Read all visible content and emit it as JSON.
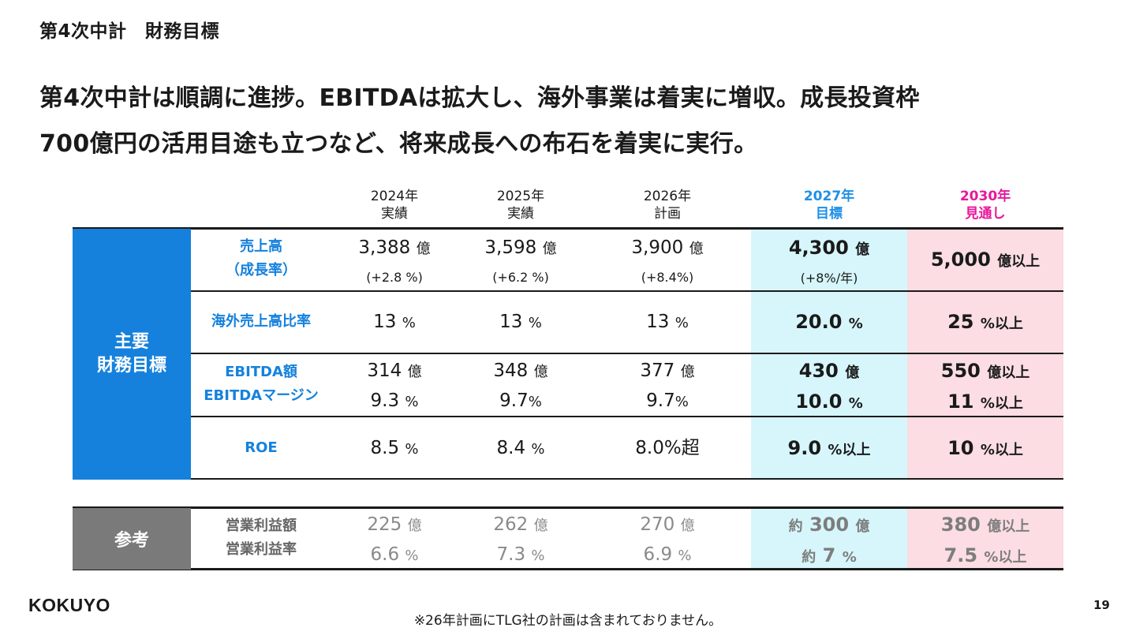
{
  "section_title": "第4次中計　財務目標",
  "headline": {
    "line1": "第4次中計は順調に進捗。EBITDAは拡大し、海外事業は着実に増収。成長投資枠",
    "line2": "700億円の活用目途も立つなど、将来成長への布石を着実に実行。"
  },
  "colors": {
    "accent_blue": "#1581dd",
    "header_cyan": "#1e90e6",
    "header_pink": "#e8179b",
    "col_cyan_bg": "#d6f6fb",
    "col_pink_bg": "#fbdde3",
    "reference_gray": "#7a7a7a"
  },
  "columns": [
    {
      "year": "2024年",
      "type": "実績"
    },
    {
      "year": "2025年",
      "type": "実績"
    },
    {
      "year": "2026年",
      "type": "計画"
    },
    {
      "year": "2027年",
      "type": "目標"
    },
    {
      "year": "2030年",
      "type": "見通し"
    }
  ],
  "group_main": {
    "label_line1": "主要",
    "label_line2": "財務目標"
  },
  "group_ref": {
    "label": "参考"
  },
  "rows": {
    "sales": {
      "label_line1": "売上高",
      "label_line2": "（成長率）",
      "cells": [
        {
          "v": "3,388",
          "u": "億",
          "g": "(+2.8 %)"
        },
        {
          "v": "3,598",
          "u": "億",
          "g": "(+6.2 %)"
        },
        {
          "v": "3,900",
          "u": "億",
          "g": "(+8.4%)"
        },
        {
          "v": "4,300",
          "u": "億",
          "g": "(+8%/年)"
        },
        {
          "v": "5,000",
          "u": "億以上"
        }
      ]
    },
    "overseas": {
      "label": "海外売上高比率",
      "cells": [
        {
          "v": "13",
          "u": "%"
        },
        {
          "v": "13",
          "u": "%"
        },
        {
          "v": "13",
          "u": "%"
        },
        {
          "v": "20.0",
          "u": "%"
        },
        {
          "v": "25",
          "u": "%以上"
        }
      ]
    },
    "ebitda": {
      "label_line1": "EBITDA額",
      "label_line2": "EBITDAマージン",
      "cells": [
        {
          "v1": "314",
          "u1": "億",
          "v2": "9.3",
          "u2": "%"
        },
        {
          "v1": "348",
          "u1": "億",
          "v2": "9.7",
          "u2": "%"
        },
        {
          "v1": "377",
          "u1": "億",
          "v2": "9.7",
          "u2": "%"
        },
        {
          "v1": "430",
          "u1": "億",
          "v2": "10.0",
          "u2": "%"
        },
        {
          "v1": "550",
          "u1": "億以上",
          "v2": "11",
          "u2": "%以上"
        }
      ]
    },
    "roe": {
      "label": "ROE",
      "cells": [
        {
          "v": "8.5",
          "u": "%"
        },
        {
          "v": "8.4",
          "u": "%"
        },
        {
          "v": "8.0%超",
          "u": ""
        },
        {
          "v": "9.0",
          "u": "%以上"
        },
        {
          "v": "10",
          "u": "%以上"
        }
      ]
    },
    "op": {
      "label_line1": "営業利益額",
      "label_line2": "営業利益率",
      "cells": [
        {
          "p1": "",
          "v1": "225",
          "u1": "億",
          "p2": "",
          "v2": "6.6",
          "u2": "%"
        },
        {
          "p1": "",
          "v1": "262",
          "u1": "億",
          "p2": "",
          "v2": "7.3",
          "u2": "%"
        },
        {
          "p1": "",
          "v1": "270",
          "u1": "億",
          "p2": "",
          "v2": "6.9",
          "u2": "%"
        },
        {
          "p1": "約",
          "v1": "300",
          "u1": "億",
          "p2": "約",
          "v2": "7",
          "u2": "%"
        },
        {
          "p1": "",
          "v1": "380",
          "u1": "億以上",
          "p2": "",
          "v2": "7.5",
          "u2": "%以上"
        }
      ]
    }
  },
  "logo": "KOKUYO",
  "footnote": "※26年計画にTLG社の計画は含まれておりません。",
  "page_number": "19"
}
